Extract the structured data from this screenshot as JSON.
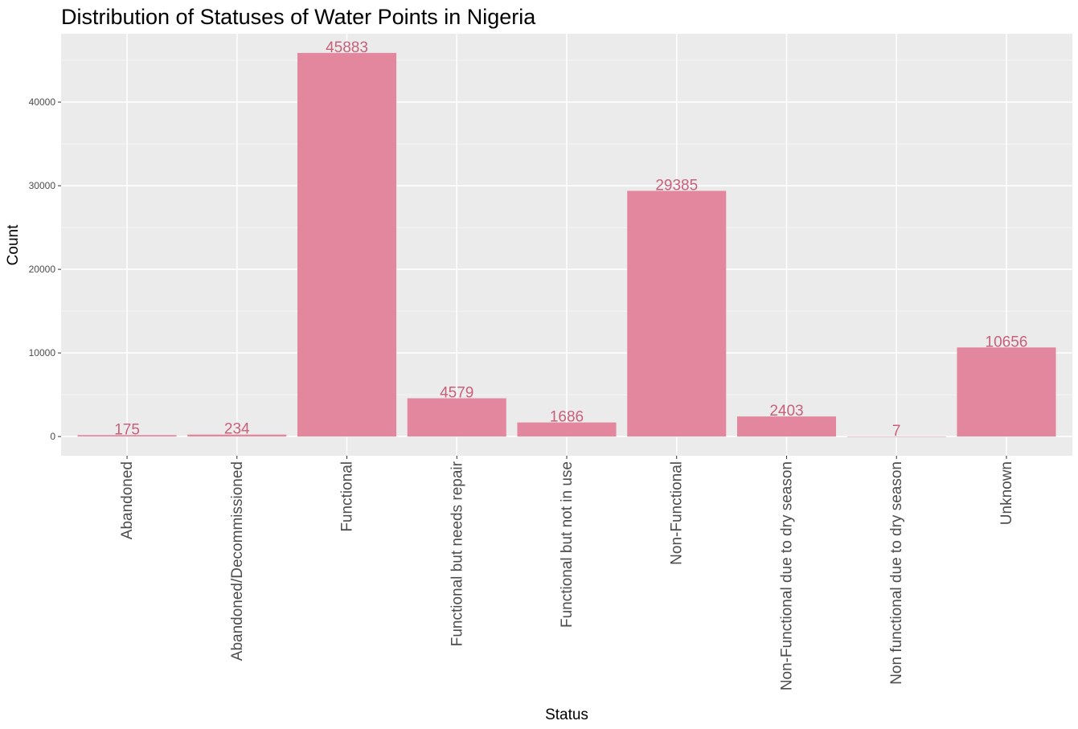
{
  "chart_data": {
    "type": "bar",
    "title": "Distribution of Statuses of Water Points in Nigeria",
    "xlabel": "Status",
    "ylabel": "Count",
    "categories": [
      "Abandoned",
      "Abandoned/Decommissioned",
      "Functional",
      "Functional but needs repair",
      "Functional but not in use",
      "Non-Functional",
      "Non-Functional due to dry season",
      "Non functional due to dry season",
      "Unknown"
    ],
    "values": [
      175,
      234,
      45883,
      4579,
      1686,
      29385,
      2403,
      7,
      10656
    ],
    "data_labels": [
      "175",
      "234",
      "45883",
      "4579",
      "1686",
      "29385",
      "2403",
      "7",
      "10656"
    ],
    "yticks": [
      0,
      10000,
      20000,
      30000,
      40000
    ],
    "ytick_labels": [
      "0",
      "10000",
      "20000",
      "30000",
      "40000"
    ],
    "ylim": [
      -2294,
      48177
    ],
    "grid": true,
    "colors": {
      "bar": "#e3879e",
      "data_label": "#c8607c",
      "panel_bg": "#ebebeb",
      "grid_major": "#ffffff",
      "grid_minor": "#f5f5f5"
    }
  }
}
